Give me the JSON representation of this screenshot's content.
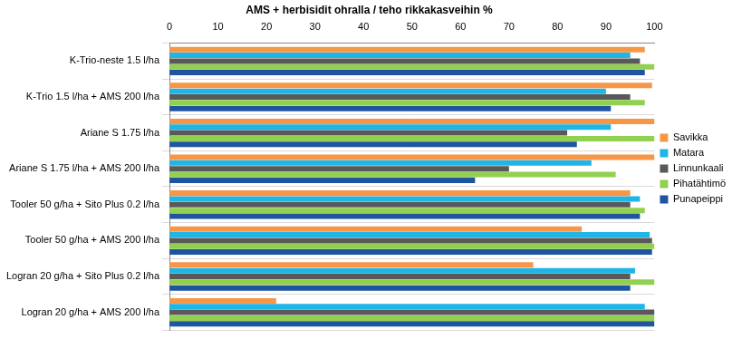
{
  "chart_data": {
    "type": "bar",
    "orientation": "horizontal",
    "title": "AMS + herbisidit ohralla / teho rikkakasveihin %",
    "categories": [
      "K-Trio-neste 1.5 l/ha",
      "K-Trio 1.5 l/ha + AMS 200 l/ha",
      "Ariane S 1.75 l/ha",
      "Ariane S 1.75 l/ha + AMS 200 l/ha",
      "Tooler 50 g/ha + Sito Plus 0.2 l/ha",
      "Tooler 50 g/ha + AMS 200 l/ha",
      "Logran 20 g/ha + Sito Plus 0.2 l/ha",
      "Logran 20 g/ha + AMS 200 l/ha"
    ],
    "series": [
      {
        "name": "Savikka",
        "color": "#f79646",
        "values": [
          98,
          99.5,
          100,
          100,
          95,
          85,
          75,
          22
        ]
      },
      {
        "name": "Matara",
        "color": "#1fb5e6",
        "values": [
          95,
          90,
          91,
          87,
          97,
          99,
          96,
          98
        ]
      },
      {
        "name": "Linnunkaali",
        "color": "#595959",
        "values": [
          97,
          95,
          82,
          70,
          95,
          99.5,
          95,
          100
        ]
      },
      {
        "name": "Pihatähtimö",
        "color": "#92d050",
        "values": [
          100,
          98,
          100,
          92,
          98,
          100,
          100,
          100
        ]
      },
      {
        "name": "Punapeippi",
        "color": "#1f55a0",
        "values": [
          98,
          91,
          84,
          63,
          97,
          99.5,
          95,
          100
        ]
      }
    ],
    "xlim": [
      0,
      100
    ],
    "xticks": [
      0,
      10,
      20,
      30,
      40,
      50,
      60,
      70,
      80,
      90,
      100
    ],
    "grid": false,
    "legend": "right"
  }
}
